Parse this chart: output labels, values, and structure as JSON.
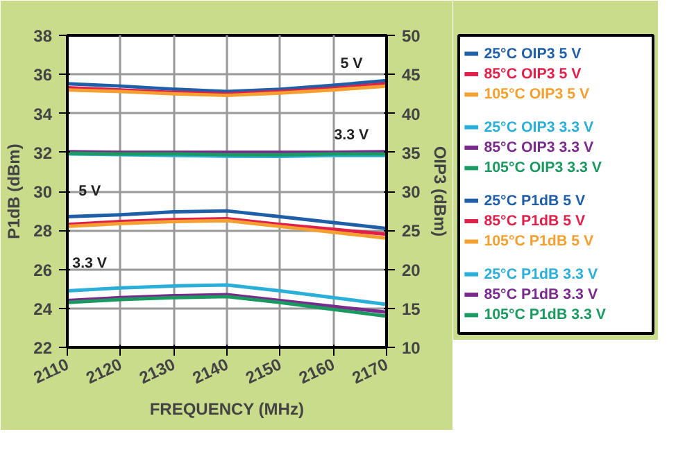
{
  "chart_data": {
    "type": "line",
    "x": [
      2110,
      2120,
      2130,
      2140,
      2150,
      2160,
      2170
    ],
    "xlabel": "FREQUENCY (MHz)",
    "ylabel": "P1dB (dBm)",
    "y2label": "OIP3 (dBm)",
    "xlim": [
      2110,
      2170
    ],
    "xticks": [
      2110,
      2120,
      2130,
      2140,
      2150,
      2160,
      2170
    ],
    "ylim": [
      22,
      38
    ],
    "yticks": [
      22,
      24,
      26,
      28,
      30,
      32,
      34,
      36,
      38
    ],
    "y2lim": [
      10,
      50
    ],
    "y2ticks": [
      10,
      15,
      20,
      25,
      30,
      35,
      40,
      45,
      50
    ],
    "grid": true,
    "legend": "right",
    "marker": "none",
    "line_style": "solid",
    "series": [
      {
        "name": "25°C OIP3 5 V",
        "color": "#1f5fa8",
        "axis": "y2",
        "values": [
          43.8,
          43.5,
          43.1,
          42.8,
          43.1,
          43.6,
          44.2
        ]
      },
      {
        "name": "85°C OIP3 5 V",
        "color": "#e0204a",
        "axis": "y2",
        "values": [
          43.3,
          43.0,
          42.7,
          42.5,
          42.8,
          43.2,
          43.8
        ]
      },
      {
        "name": "105°C OIP3 5 V",
        "color": "#f4a030",
        "axis": "y2",
        "values": [
          43.0,
          42.8,
          42.5,
          42.3,
          42.6,
          43.0,
          43.5
        ]
      },
      {
        "name": "25°C OIP3 3.3 V",
        "color": "#2ab0d8",
        "axis": "y2",
        "values": [
          34.8,
          34.7,
          34.6,
          34.5,
          34.5,
          34.6,
          34.6
        ]
      },
      {
        "name": "85°C OIP3 3.3 V",
        "color": "#7a2a8c",
        "axis": "y2",
        "values": [
          35.1,
          35.0,
          35.0,
          35.0,
          35.0,
          35.0,
          35.1
        ]
      },
      {
        "name": "105°C OIP3 3.3 V",
        "color": "#1a9a60",
        "axis": "y2",
        "values": [
          34.9,
          34.8,
          34.8,
          34.7,
          34.7,
          34.8,
          34.8
        ]
      },
      {
        "name": "25°C P1dB 5 V",
        "color": "#1f5fa8",
        "axis": "y",
        "values": [
          28.7,
          28.8,
          28.95,
          29.0,
          28.7,
          28.4,
          28.1
        ]
      },
      {
        "name": "85°C P1dB 5 V",
        "color": "#e0204a",
        "axis": "y",
        "values": [
          28.3,
          28.45,
          28.55,
          28.6,
          28.3,
          28.05,
          27.8
        ]
      },
      {
        "name": "105°C P1dB 5 V",
        "color": "#f4a030",
        "axis": "y",
        "values": [
          28.2,
          28.35,
          28.45,
          28.5,
          28.2,
          27.9,
          27.6
        ]
      },
      {
        "name": "25°C P1dB 3.3 V",
        "color": "#2ab0d8",
        "axis": "y",
        "values": [
          24.9,
          25.05,
          25.15,
          25.2,
          24.9,
          24.55,
          24.2
        ]
      },
      {
        "name": "85°C P1dB 3.3 V",
        "color": "#7a2a8c",
        "axis": "y",
        "values": [
          24.4,
          24.55,
          24.65,
          24.7,
          24.4,
          24.1,
          23.8
        ]
      },
      {
        "name": "105°C P1dB 3.3 V",
        "color": "#1a9a60",
        "axis": "y",
        "values": [
          24.3,
          24.45,
          24.55,
          24.6,
          24.3,
          23.95,
          23.6
        ]
      }
    ],
    "annotations": [
      "5 V",
      "3.3 V",
      "5 V",
      "3.3 V"
    ]
  }
}
